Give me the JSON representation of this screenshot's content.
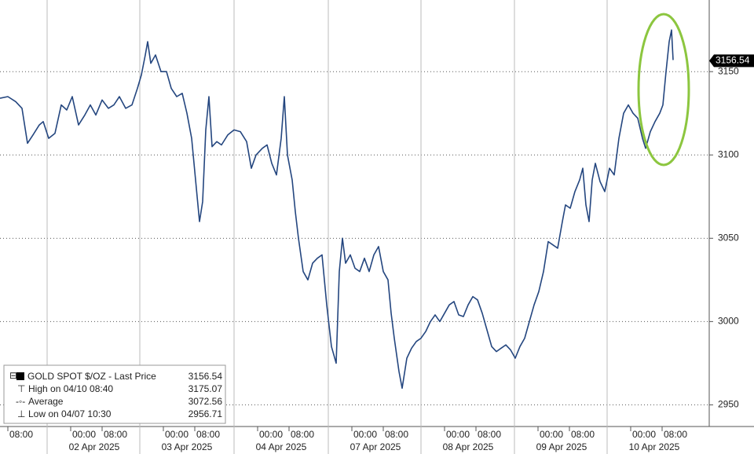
{
  "chart_data": {
    "type": "line",
    "series": [
      {
        "name": "GOLD SPOT $/OZ",
        "color": "#24467f",
        "x": [
          -12,
          -10,
          -8,
          -6.4,
          -5,
          -3.6,
          -2,
          -1,
          0.4,
          2,
          3.6,
          5,
          6.4,
          8,
          9.6,
          11,
          12.4,
          14,
          15.6,
          17,
          18.4,
          20,
          21.6,
          23,
          24,
          25,
          25.6,
          26.4,
          27.6,
          29,
          30.4,
          31.6,
          33,
          34.4,
          35.6,
          36.8,
          38,
          38.8,
          39.6,
          40.4,
          41.2,
          42,
          43.2,
          44.4,
          46,
          47.6,
          49.2,
          50.8,
          52,
          53.2,
          54.8,
          56,
          57.2,
          58.4,
          59.6,
          60.4,
          61.2,
          62.4,
          63.2,
          64,
          65.2,
          66.4,
          67.6,
          68.8,
          70,
          71.2,
          72.4,
          73.6,
          74.4,
          75.2,
          76,
          77.2,
          78.4,
          79.6,
          80.8,
          82,
          83.2,
          84.4,
          85.6,
          86.8,
          87.6,
          88.4,
          89.6,
          90.4,
          91.6,
          92.8,
          94,
          95.2,
          96.4,
          97.6,
          98.8,
          100,
          101.2,
          102.4,
          103.6,
          104.8,
          106,
          107.2,
          108.4,
          109.6,
          110.8,
          112,
          113.2,
          114.4,
          115.6,
          116.8,
          118,
          119.2,
          120.4,
          121.6,
          122.8,
          124,
          125.2,
          126.4,
          127.6,
          128.8,
          130,
          131.2,
          132,
          133.2,
          134.4,
          135.6,
          136.4,
          137.2,
          138,
          138.8,
          139.6,
          140.8,
          142,
          143.2,
          144.4,
          145.6,
          146.8,
          148,
          149.2,
          150.4,
          151.6,
          152.4,
          153.6,
          154.8,
          156,
          156.8,
          157.6,
          158.4,
          159,
          159.4
        ],
        "values": [
          3134,
          3135,
          3132,
          3128,
          3107,
          3112,
          3118,
          3120,
          3110,
          3113,
          3130,
          3127,
          3135,
          3118,
          3124,
          3130,
          3124,
          3133,
          3128,
          3130,
          3135,
          3128,
          3130,
          3140,
          3148,
          3160,
          3168,
          3155,
          3160,
          3150,
          3150,
          3140,
          3135,
          3137,
          3125,
          3110,
          3080,
          3060,
          3072,
          3115,
          3135,
          3105,
          3108,
          3106,
          3112,
          3115,
          3114,
          3108,
          3092,
          3100,
          3104,
          3106,
          3095,
          3088,
          3110,
          3135,
          3100,
          3085,
          3066,
          3050,
          3030,
          3025,
          3035,
          3038,
          3040,
          3010,
          2985,
          2975,
          3030,
          3050,
          3035,
          3040,
          3032,
          3030,
          3038,
          3030,
          3040,
          3045,
          3030,
          3025,
          3005,
          2990,
          2970,
          2960,
          2978,
          2984,
          2988,
          2990,
          2994,
          3000,
          3004,
          3000,
          3005,
          3010,
          3012,
          3004,
          3003,
          3010,
          3015,
          3013,
          3005,
          2995,
          2985,
          2982,
          2984,
          2986,
          2983,
          2978,
          2985,
          2990,
          3000,
          3010,
          3018,
          3030,
          3048,
          3046,
          3044,
          3060,
          3070,
          3068,
          3078,
          3085,
          3092,
          3070,
          3060,
          3085,
          3095,
          3084,
          3078,
          3092,
          3088,
          3110,
          3125,
          3130,
          3125,
          3122,
          3110,
          3104,
          3114,
          3120,
          3125,
          3130,
          3150,
          3168,
          3175,
          3157
        ]
      }
    ],
    "xlim": [
      -12,
      168
    ],
    "ylim": [
      2937,
      3193
    ],
    "yticks": [
      2950,
      3000,
      3050,
      3100,
      3150
    ],
    "grid": true,
    "xticks": [
      {
        "value": -10,
        "label": "08:00"
      },
      {
        "value": 6,
        "label": "00:00"
      },
      {
        "value": 14,
        "label": "08:00"
      },
      {
        "value": 29.6,
        "label": "00:00"
      },
      {
        "value": 37.6,
        "label": "08:00"
      },
      {
        "value": 53.6,
        "label": "00:00"
      },
      {
        "value": 61.6,
        "label": "08:00"
      },
      {
        "value": 77.6,
        "label": "00:00"
      },
      {
        "value": 85.6,
        "label": "08:00"
      },
      {
        "value": 101.2,
        "label": "00:00"
      },
      {
        "value": 109.2,
        "label": "08:00"
      },
      {
        "value": 125,
        "label": "00:00"
      },
      {
        "value": 133,
        "label": "08:00"
      },
      {
        "value": 148.6,
        "label": "00:00"
      },
      {
        "value": 156.6,
        "label": "08:00"
      }
    ],
    "date_ticks": [
      {
        "value": 0,
        "label": "02 Apr 2025"
      },
      {
        "value": 23.6,
        "label": "03 Apr 2025"
      },
      {
        "value": 47.6,
        "label": "04 Apr 2025"
      },
      {
        "value": 71.6,
        "label": "07 Apr 2025"
      },
      {
        "value": 95.2,
        "label": "08 Apr 2025"
      },
      {
        "value": 119,
        "label": "09 Apr 2025"
      },
      {
        "value": 142.6,
        "label": "10 Apr 2025"
      }
    ],
    "legend": [
      {
        "label": "GOLD SPOT $/OZ - Last Price",
        "value": 3156.54
      },
      {
        "label": "High on 04/10 08:40",
        "value": 3175.07
      },
      {
        "label": "Average",
        "value": 3072.56
      },
      {
        "label": "Low on 04/07 10:30",
        "value": 2956.71
      }
    ]
  }
}
